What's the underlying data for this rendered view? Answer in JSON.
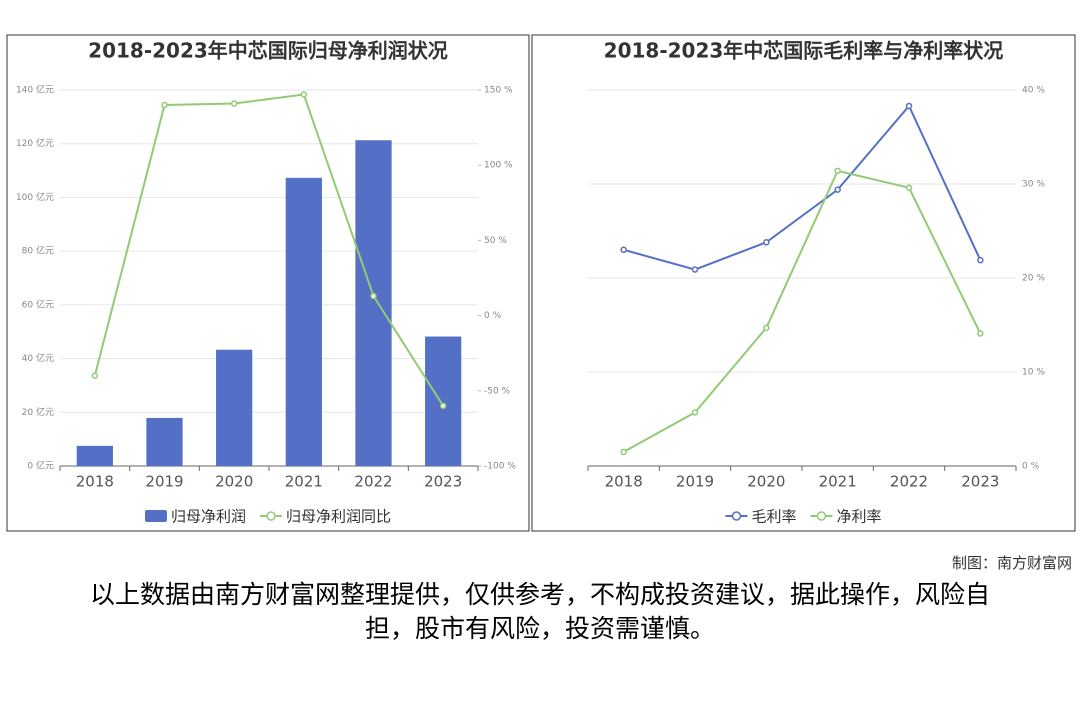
{
  "chart_data": [
    {
      "type": "bar",
      "title": "2018-2023年中芯国际归母净利润状况",
      "categories": [
        "2018",
        "2019",
        "2020",
        "2021",
        "2022",
        "2023"
      ],
      "series": [
        {
          "name": "归母净利润",
          "type": "bar",
          "color": "#5470c6",
          "values": [
            7.5,
            17.9,
            43.3,
            107.3,
            121.3,
            48.2
          ]
        },
        {
          "name": "归母净利润同比",
          "type": "line",
          "axis": "y2",
          "color": "#91cc75",
          "values": [
            -40,
            140,
            141,
            147,
            13,
            -60
          ]
        }
      ],
      "ylim": [
        0,
        140
      ],
      "yticks": [
        {
          "value": 0,
          "label": "0 亿元"
        },
        {
          "value": 20,
          "label": "20 亿元"
        },
        {
          "value": 40,
          "label": "40 亿元"
        },
        {
          "value": 60,
          "label": "60 亿元"
        },
        {
          "value": 80,
          "label": "80 亿元"
        },
        {
          "value": 100,
          "label": "100 亿元"
        },
        {
          "value": 120,
          "label": "120 亿元"
        },
        {
          "value": 140,
          "label": "140 亿元"
        }
      ],
      "y2lim": [
        -100,
        150
      ],
      "y2ticks": [
        {
          "value": -100,
          "label": "-100 %"
        },
        {
          "value": -50,
          "label": "-50 %"
        },
        {
          "value": 0,
          "label": "0 %"
        },
        {
          "value": 50,
          "label": "50 %"
        },
        {
          "value": 100,
          "label": "100 %"
        },
        {
          "value": 150,
          "label": "150 %"
        }
      ],
      "grid": true,
      "legend": "bottom"
    },
    {
      "type": "line",
      "title": "2018-2023年中芯国际毛利率与净利率状况",
      "categories": [
        "2018",
        "2019",
        "2020",
        "2021",
        "2022",
        "2023"
      ],
      "series": [
        {
          "name": "毛利率",
          "type": "line",
          "axis": "y2",
          "color": "#5470c6",
          "values": [
            23.0,
            20.9,
            23.8,
            29.4,
            38.3,
            21.9
          ]
        },
        {
          "name": "净利率",
          "type": "line",
          "axis": "y2",
          "color": "#91cc75",
          "values": [
            1.5,
            5.7,
            14.7,
            31.4,
            29.6,
            14.1
          ]
        }
      ],
      "y2lim": [
        0,
        40
      ],
      "y2ticks": [
        {
          "value": 0,
          "label": "0 %"
        },
        {
          "value": 10,
          "label": "10 %"
        },
        {
          "value": 20,
          "label": "20 %"
        },
        {
          "value": 30,
          "label": "30 %"
        },
        {
          "value": 40,
          "label": "40 %"
        }
      ],
      "grid": true,
      "legend": "bottom"
    }
  ],
  "credit": "制图：南方财富网",
  "disclaimer": "以上数据由南方财富网整理提供，仅供参考，不构成投资建议，据此操作，风险自担，股市有风险，投资需谨慎。"
}
